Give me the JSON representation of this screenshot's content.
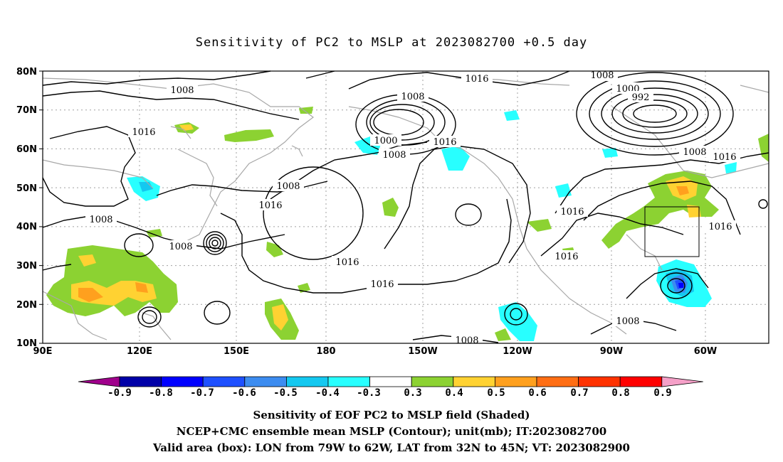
{
  "title": "Sensitivity of PC2 to MSLP at 2023082700 +0.5 day",
  "lat_labels": [
    "80N",
    "70N",
    "60N",
    "50N",
    "40N",
    "30N",
    "20N",
    "10N"
  ],
  "lon_labels": [
    "90E",
    "120E",
    "150E",
    "180",
    "150W",
    "120W",
    "90W",
    "60W"
  ],
  "colorbar": {
    "labels": [
      "-0.9",
      "-0.8",
      "-0.7",
      "-0.6",
      "-0.5",
      "-0.4",
      "-0.3",
      "0.3",
      "0.4",
      "0.5",
      "0.6",
      "0.7",
      "0.8",
      "0.9"
    ],
    "colors": [
      "#a0008c",
      "#0000a8",
      "#0000ff",
      "#1e50ff",
      "#3c8cf0",
      "#14c8f0",
      "#28ffff",
      "#ffffff",
      "#8cd232",
      "#ffd232",
      "#ffa01e",
      "#ff6e14",
      "#ff3200",
      "#ff0000",
      "#f5a0c8"
    ]
  },
  "contour_labels": [
    {
      "id": "c1",
      "text": "1008"
    },
    {
      "id": "c2",
      "text": "1016"
    },
    {
      "id": "c3",
      "text": "1008"
    },
    {
      "id": "c4",
      "text": "1008"
    },
    {
      "id": "c5",
      "text": "1008"
    },
    {
      "id": "c6",
      "text": "1016"
    },
    {
      "id": "c7",
      "text": "1016"
    },
    {
      "id": "c8",
      "text": "1016"
    },
    {
      "id": "c9",
      "text": "1008"
    },
    {
      "id": "c10",
      "text": "1000"
    },
    {
      "id": "c11",
      "text": "1008"
    },
    {
      "id": "c12",
      "text": "1016"
    },
    {
      "id": "c13",
      "text": "1016"
    },
    {
      "id": "c14",
      "text": "1008"
    },
    {
      "id": "c15",
      "text": "1000"
    },
    {
      "id": "c16",
      "text": "992"
    },
    {
      "id": "c17",
      "text": "1008"
    },
    {
      "id": "c18",
      "text": "1016"
    },
    {
      "id": "c19",
      "text": "1016"
    },
    {
      "id": "c20",
      "text": "1016"
    },
    {
      "id": "c21",
      "text": "1016"
    },
    {
      "id": "c22",
      "text": "1008"
    },
    {
      "id": "c23",
      "text": "1008"
    }
  ],
  "captions": {
    "line1": "Sensitivity of EOF PC2 to MSLP field (Shaded)",
    "line2": "NCEP+CMC ensemble mean MSLP (Contour); unit(mb); IT:2023082700",
    "line3": "Valid area (box): LON from 79W to 62W, LAT from 32N to 45N; VT: 2023082900"
  },
  "valid_box": {
    "lon_min": "79W",
    "lon_max": "62W",
    "lat_min": "32N",
    "lat_max": "45N"
  },
  "colors": {
    "land_outline": "#a8a8a8",
    "grid": "#a0a0a0",
    "contour": "#000000"
  }
}
